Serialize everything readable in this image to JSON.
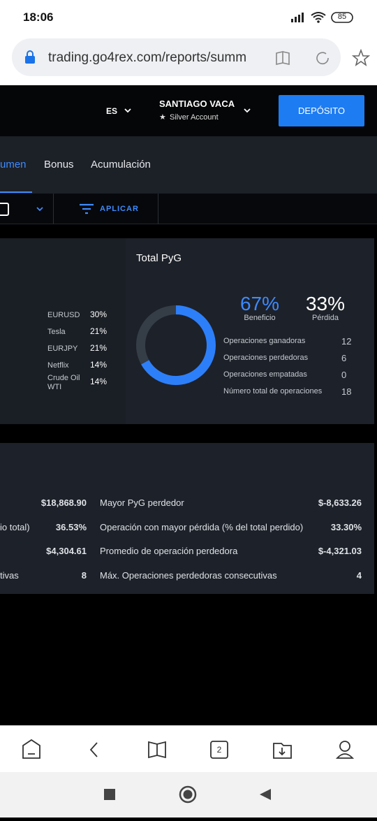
{
  "status_bar": {
    "time": "18:06",
    "battery": "85"
  },
  "browser": {
    "url": "trading.go4rex.com/reports/summ"
  },
  "header": {
    "language": "ES",
    "user_name": "SANTIAGO VACA",
    "account": "Silver Account",
    "deposit_button": "DEPÓSITO"
  },
  "tabs": [
    "umen",
    "Bonus",
    "Acumulación"
  ],
  "filter": {
    "apply": "APLICAR"
  },
  "instruments": [
    [
      "EURUSD",
      "30%"
    ],
    [
      "Tesla",
      "21%"
    ],
    [
      "EURJPY",
      "21%"
    ],
    [
      "Netflix",
      "14%"
    ],
    [
      "Crude Oil WTI",
      "14%"
    ]
  ],
  "chart_data": {
    "type": "pie",
    "donut": true,
    "title": "Total PyG",
    "categories": [
      "Beneficio",
      "Pérdida"
    ],
    "values": [
      67,
      33
    ],
    "value_labels": [
      "67%",
      "33%"
    ],
    "colors": [
      "#2d7ff9",
      "#353d47"
    ],
    "label_colors": [
      "#3d8bff",
      "#ffffff"
    ]
  },
  "operations": [
    [
      "Operaciones ganadoras",
      "12"
    ],
    [
      "Operaciones perdedoras",
      "6"
    ],
    [
      "Operaciones empatadas",
      "0"
    ],
    [
      "Número total de operaciones",
      "18"
    ]
  ],
  "stats": [
    {
      "left_value": "$18,868.90",
      "right_label": "Mayor PyG perdedor",
      "right_value": "$-8,633.26"
    },
    {
      "left_label": "io total)",
      "left_value": "36.53%",
      "right_label": "Operación con mayor pérdida (% del total perdido)",
      "right_value": "33.30%"
    },
    {
      "left_value": "$4,304.61",
      "right_label": "Promedio de operación perdedora",
      "right_value": "$-4,321.03"
    },
    {
      "left_label": "tivas",
      "left_value": "8",
      "right_label": "Máx. Operaciones perdedoras consecutivas",
      "right_value": "4"
    }
  ],
  "bottom_nav": {
    "tab_count": "2"
  }
}
